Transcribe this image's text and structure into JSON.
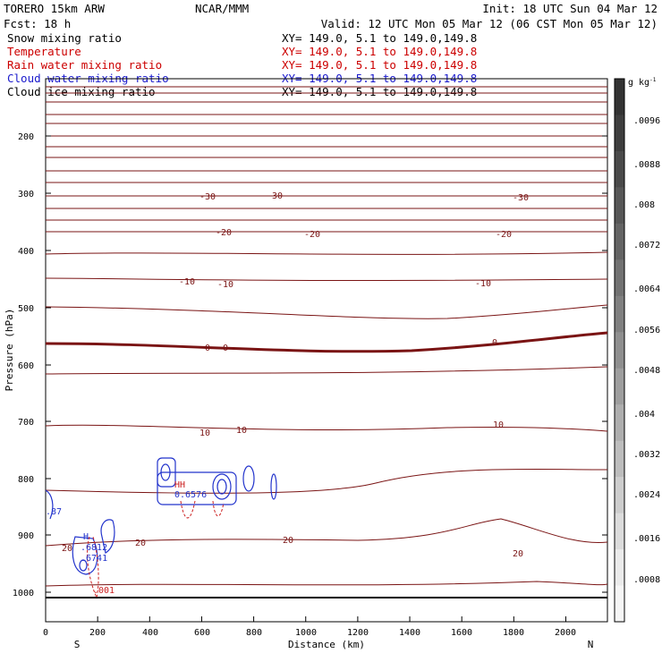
{
  "header": {
    "model": "TORERO  15km ARW",
    "org": "NCAR/MMM",
    "init": "Init: 18 UTC Sun 04 Mar 12",
    "fcst": "Fcst:   18 h",
    "valid": "Valid: 12 UTC Mon 05 Mar 12 (06 CST Mon 05 Mar 12)"
  },
  "fields": [
    {
      "name": "Snow mixing ratio",
      "xy": "XY= 149.0,  5.1 to 149.0,149.8",
      "color": "#000000"
    },
    {
      "name": "Temperature",
      "xy": "XY= 149.0,  5.1 to 149.0,149.8",
      "color": "#cc0000"
    },
    {
      "name": "Rain water mixing ratio",
      "xy": "XY= 149.0,  5.1 to 149.0,149.8",
      "color": "#cc0000"
    },
    {
      "name": "Cloud water mixing ratio",
      "xy": "XY= 149.0,  5.1 to 149.0,149.8",
      "color": "#1a1acc"
    },
    {
      "name": "Cloud ice mixing ratio",
      "xy": "XY= 149.0,  5.1 to 149.0,149.8",
      "color": "#000000"
    }
  ],
  "chart_data": {
    "type": "contour",
    "xlabel": "Distance (km)",
    "ylabel": "Pressure (hPa)",
    "xlim": [
      0,
      2160
    ],
    "ylim": [
      1040,
      100
    ],
    "x_ticks": [
      "0",
      "200",
      "400",
      "600",
      "800",
      "1000",
      "1200",
      "1400",
      "1600",
      "1800",
      "2000"
    ],
    "y_ticks": [
      "200",
      "300",
      "400",
      "500",
      "600",
      "700",
      "800",
      "900",
      "1000"
    ],
    "bottom_labels": [
      "S",
      "N"
    ],
    "temperature_labels": [
      "-30",
      "-30",
      "-30",
      "-20",
      "-20",
      "-20",
      "-10",
      "-10",
      "-10",
      "0",
      "0",
      "0",
      "10",
      "10",
      "10",
      "20",
      "20",
      "20",
      "20"
    ],
    "feature_labels": {
      "high1": "HH",
      "high2": "H",
      "mins": [
        "0.6576",
        ".6812",
        ".6741",
        ".001",
        ".87"
      ]
    },
    "colorbar": {
      "unit": "g kg",
      "unit_exp": "-1",
      "labels": [
        ".0096",
        ".0088",
        ".008",
        ".0072",
        ".0064",
        ".0056",
        ".0048",
        ".004",
        ".0032",
        ".0024",
        ".0016",
        ".0008"
      ],
      "shades": [
        "#333333",
        "#3e3e3e",
        "#4a4a4a",
        "#575757",
        "#646464",
        "#727272",
        "#808080",
        "#8f8f8f",
        "#9e9e9e",
        "#aeaeae",
        "#bdbdbd",
        "#cdcdcd",
        "#dcdcdc",
        "#ebebeb",
        "#f6f6f6"
      ]
    },
    "colors": {
      "temperature": "#7a1414",
      "rain": "#cc2222",
      "cloud_water": "#2233cc"
    }
  }
}
